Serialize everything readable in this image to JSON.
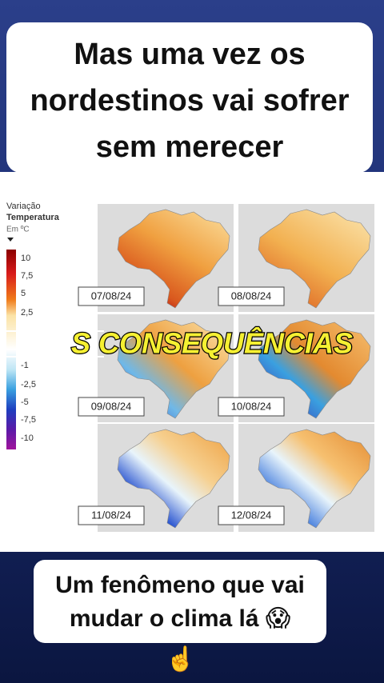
{
  "top_caption": {
    "lines": [
      "Mas uma vez os",
      "nordestinos vai sofrer",
      "sem merecer"
    ]
  },
  "legend": {
    "title": [
      "Variação",
      "Temperatura"
    ],
    "unit": "Em ºC",
    "labels": [
      "10",
      "7,5",
      "5",
      "2,5",
      "-1",
      "-2,5",
      "-5",
      "-7,5",
      "-10"
    ]
  },
  "maps": [
    {
      "date": "07/08/24"
    },
    {
      "date": "08/08/24"
    },
    {
      "date": "09/08/24"
    },
    {
      "date": "10/08/24"
    },
    {
      "date": "11/08/24"
    },
    {
      "date": "12/08/24"
    }
  ],
  "overlay_text": "S CONSEQUÊNCIAS",
  "bottom_caption": {
    "lines": [
      "Um fenômeno que vai",
      "mudar o clima lá 😱"
    ]
  },
  "pointer": "☝️"
}
